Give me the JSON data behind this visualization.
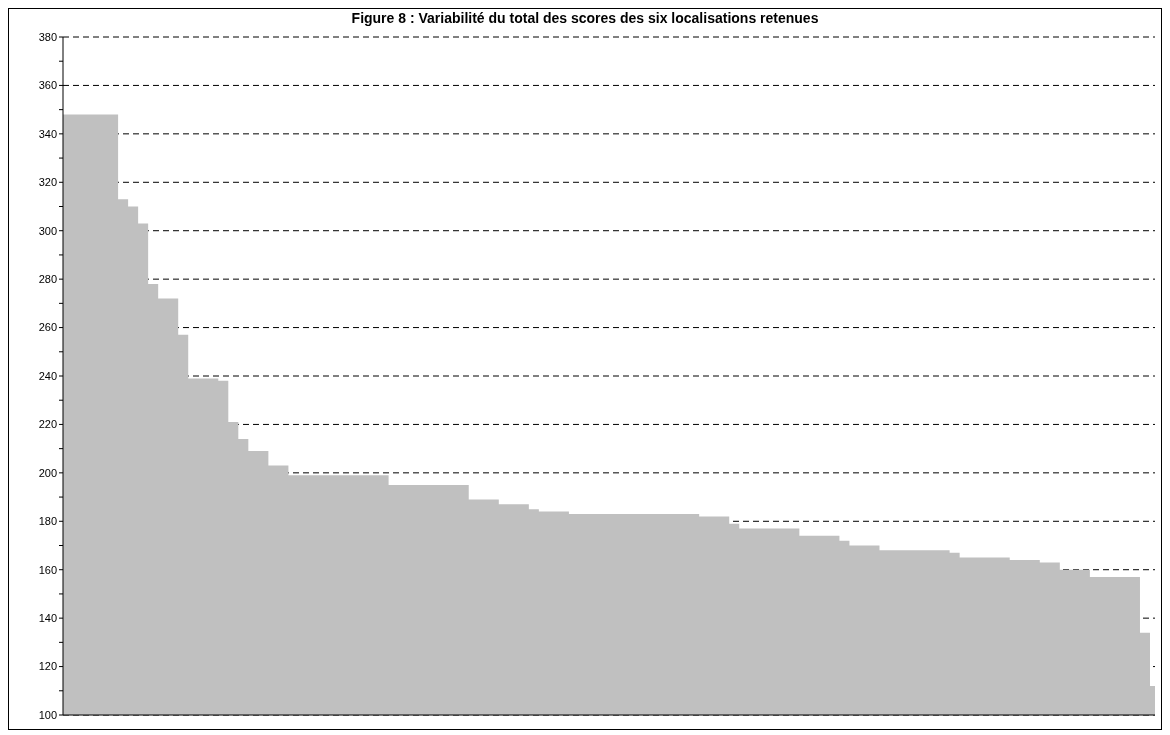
{
  "chart_data": {
    "type": "area",
    "title": "Figure 8 : Variabilité du total des scores des six localisations retenues",
    "categories": [
      null,
      null,
      null,
      null,
      null,
      null,
      null,
      null,
      null,
      null,
      null,
      null,
      null,
      null,
      null,
      null,
      null,
      null,
      null,
      null,
      null,
      null,
      null,
      null,
      null,
      null,
      null,
      null,
      null,
      null,
      null,
      null,
      null,
      null,
      null,
      null,
      null,
      null,
      null,
      null,
      null,
      null,
      null,
      null,
      null,
      null,
      null,
      null,
      null,
      null,
      null,
      null,
      null,
      null,
      null,
      null,
      null,
      null,
      null,
      null,
      null,
      null,
      null,
      null,
      null,
      null,
      null,
      null,
      null,
      null,
      null,
      null,
      null,
      null,
      null,
      null,
      null,
      null,
      null,
      null,
      null,
      null,
      null,
      null,
      null,
      null,
      null,
      null,
      null,
      null,
      null,
      null,
      null,
      null,
      null,
      null,
      null,
      null,
      null,
      null,
      null,
      null,
      null,
      null,
      null,
      null,
      null,
      null,
      null,
      null
    ],
    "values": [
      348,
      348,
      348,
      348,
      348,
      348,
      313,
      310,
      303,
      278,
      272,
      272,
      257,
      239,
      239,
      239,
      238,
      221,
      214,
      209,
      209,
      203,
      203,
      199,
      199,
      199,
      199,
      199,
      199,
      199,
      199,
      199,
      199,
      195,
      195,
      195,
      195,
      195,
      195,
      195,
      195,
      189,
      189,
      189,
      187,
      187,
      187,
      185,
      184,
      184,
      184,
      183,
      183,
      183,
      183,
      183,
      183,
      183,
      183,
      183,
      183,
      183,
      183,
      183,
      182,
      182,
      182,
      179,
      177,
      177,
      177,
      177,
      177,
      177,
      174,
      174,
      174,
      174,
      172,
      170,
      170,
      170,
      168,
      168,
      168,
      168,
      168,
      168,
      168,
      167,
      165,
      165,
      165,
      165,
      165,
      164,
      164,
      164,
      163,
      163,
      160,
      160,
      160,
      157,
      157,
      157,
      157,
      157,
      134,
      112
    ],
    "color": "#c0c0c0",
    "ylim": [
      100,
      380
    ],
    "yticks": [
      100,
      {
        "value": 110,
        "label": null
      },
      120,
      {
        "value": 130,
        "label": null
      },
      140,
      {
        "value": 150,
        "label": null
      },
      160,
      {
        "value": 170,
        "label": null
      },
      180,
      {
        "value": 190,
        "label": null
      },
      200,
      {
        "value": 210,
        "label": null
      },
      220,
      {
        "value": 230,
        "label": null
      },
      240,
      {
        "value": 250,
        "label": null
      },
      260,
      {
        "value": 270,
        "label": null
      },
      280,
      {
        "value": 290,
        "label": null
      },
      300,
      {
        "value": 310,
        "label": null
      },
      320,
      {
        "value": 330,
        "label": null
      },
      340,
      {
        "value": 350,
        "label": null
      },
      360,
      {
        "value": 370,
        "label": null
      },
      380
    ],
    "grid": "y"
  }
}
